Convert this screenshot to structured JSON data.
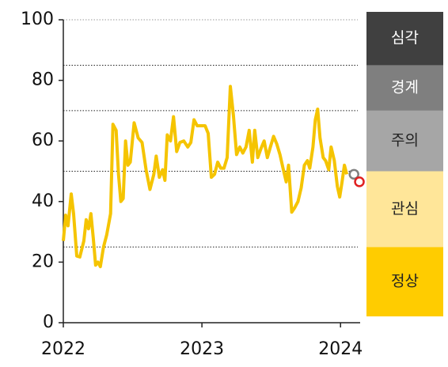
{
  "chart_data": {
    "type": "line",
    "x": [
      2022,
      2022.017,
      2022.034,
      2022.057,
      2022.074,
      2022.097,
      2022.119,
      2022.148,
      2022.165,
      2022.182,
      2022.199,
      2022.216,
      2022.233,
      2022.25,
      2022.267,
      2022.29,
      2022.313,
      2022.341,
      2022.358,
      2022.381,
      2022.398,
      2022.415,
      2022.432,
      2022.449,
      2022.466,
      2022.483,
      2022.511,
      2022.54,
      2022.568,
      2022.597,
      2022.625,
      2022.653,
      2022.67,
      2022.693,
      2022.716,
      2022.733,
      2022.75,
      2022.773,
      2022.795,
      2022.818,
      2022.841,
      2022.869,
      2022.898,
      2022.92,
      2022.943,
      2022.966,
      2022.994,
      2023.023,
      2023.045,
      2023.068,
      2023.091,
      2023.114,
      2023.136,
      2023.159,
      2023.182,
      2023.205,
      2023.227,
      2023.25,
      2023.273,
      2023.295,
      2023.318,
      2023.341,
      2023.364,
      2023.381,
      2023.403,
      2023.426,
      2023.449,
      2023.472,
      2023.494,
      2023.517,
      2023.54,
      2023.563,
      2023.585,
      2023.608,
      2023.625,
      2023.648,
      2023.67,
      2023.693,
      2023.716,
      2023.739,
      2023.761,
      2023.778,
      2023.801,
      2023.818,
      2023.835,
      2023.852,
      2023.875,
      2023.892,
      2023.915,
      2023.932,
      2023.955,
      2023.977,
      2023.994,
      2024.011,
      2024.028,
      2024.045
    ],
    "series": [
      {
        "color": "#f5c400",
        "values": [
          27,
          35.5,
          32,
          42.5,
          36,
          22,
          21.7,
          27,
          34,
          31,
          36,
          28,
          19,
          20,
          18.5,
          25,
          29,
          36,
          65.5,
          63.5,
          49,
          40,
          41,
          60,
          52,
          53,
          66,
          61,
          59.5,
          50.5,
          44,
          49,
          55,
          48,
          50.5,
          47,
          62,
          60,
          68,
          56.5,
          59.5,
          60,
          58,
          59.5,
          67,
          65,
          65,
          65,
          62.5,
          48,
          49,
          53,
          51,
          51,
          54.5,
          78,
          68.5,
          55.5,
          58,
          56,
          58,
          63.5,
          53,
          63.5,
          54.5,
          57.5,
          60,
          54.5,
          58,
          61.5,
          59,
          55.5,
          51,
          46.5,
          52,
          36.5,
          38,
          40,
          44.5,
          52,
          53.5,
          51,
          58,
          67,
          70.5,
          61,
          54.5,
          53.5,
          50.5,
          58,
          53.5,
          45,
          41.5,
          46.5,
          52,
          49
        ]
      }
    ],
    "markers": [
      {
        "color": "#808080",
        "x": 2024.097,
        "value": 49
      },
      {
        "color": "#e02020",
        "x": 2024.136,
        "value": 46.5
      }
    ],
    "levels": [
      {
        "label": "정상",
        "range": [
          0,
          25
        ],
        "color": "#ffcc00"
      },
      {
        "label": "관심",
        "range": [
          25,
          50
        ],
        "color": "#ffe699"
      },
      {
        "label": "주의",
        "range": [
          50,
          70
        ],
        "color": "#a6a6a6"
      },
      {
        "label": "경계",
        "range": [
          70,
          85
        ],
        "color": "#7f7f7f"
      },
      {
        "label": "심각",
        "range": [
          85,
          100
        ],
        "color": "#404040"
      }
    ],
    "xlim": [
      2022,
      2024.17
    ],
    "xticks": [
      2022,
      2023,
      2024
    ],
    "ylim": [
      0,
      100
    ],
    "yticks": [
      0,
      20,
      40,
      60,
      80,
      100
    ]
  }
}
